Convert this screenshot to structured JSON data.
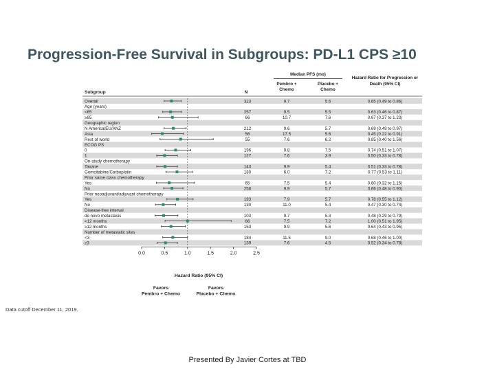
{
  "slide": {
    "title": "Progression-Free Survival in Subgroups: PD-L1 CPS ≥10",
    "data_cutoff": "Data cutoff December 11, 2019.",
    "presenter": "Presented By Javier Cortes at TBD"
  },
  "table": {
    "header_median": "Median PFS (mo)",
    "header_pembro": "Pembro + Chemo",
    "header_placebo": "Placebo + Chemo",
    "header_hr": "Hazard Ratio for Progression or Death (95% CI)",
    "header_subgroup": "Subgroup",
    "header_n": "N"
  },
  "chart_data": {
    "type": "forest",
    "xlabel": "Hazard Ratio (95% CI)",
    "xticks": [
      "0.0",
      "0.5",
      "1.0",
      "1.5",
      "2.0",
      "2.5"
    ],
    "xlim": [
      0,
      2.5
    ],
    "reference_line": 1.0,
    "favors_left": "Favors Pembro + Chemo",
    "favors_right": "Favors Placebo + Chemo",
    "marker_color": "#2e8b7a",
    "band_color": "#d9d9d9",
    "rows": [
      {
        "label": "Overall",
        "n": "323",
        "pembro": "9.7",
        "placebo": "5.6",
        "hr_text": "0.65 (0.49 to 0.86)",
        "hr": 0.65,
        "lo": 0.49,
        "hi": 0.86,
        "header": false
      },
      {
        "label": "Age (years)",
        "header": true
      },
      {
        "label": "<65",
        "n": "257",
        "pembro": "9.5",
        "placebo": "5.5",
        "hr_text": "0.63 (0.46 to 0.87)",
        "hr": 0.63,
        "lo": 0.46,
        "hi": 0.87,
        "header": false
      },
      {
        "label": "≥65",
        "n": "66",
        "pembro": "10.7",
        "placebo": "7.6",
        "hr_text": "0.67 (0.37 to 1.23)",
        "hr": 0.67,
        "lo": 0.37,
        "hi": 1.23,
        "header": false
      },
      {
        "label": "Geographic region",
        "header": true
      },
      {
        "label": "N America/EU/ANZ",
        "n": "212",
        "pembro": "9.6",
        "placebo": "5.7",
        "hr_text": "0.69 (0.49 to 0.97)",
        "hr": 0.69,
        "lo": 0.49,
        "hi": 0.97,
        "header": false
      },
      {
        "label": "Asia",
        "n": "56",
        "pembro": "17.5",
        "placebo": "5.6",
        "hr_text": "0.45 (0.22 to 0.91)",
        "hr": 0.45,
        "lo": 0.22,
        "hi": 0.91,
        "header": false
      },
      {
        "label": "Rest of world",
        "n": "55",
        "pembro": "7.6",
        "placebo": "6.2",
        "hr_text": "0.85 (0.40 to 1.56)",
        "hr": 0.85,
        "lo": 0.4,
        "hi": 1.56,
        "header": false
      },
      {
        "label": "ECOG PS",
        "header": true
      },
      {
        "label": "0",
        "n": "196",
        "pembro": "9.8",
        "placebo": "7.5",
        "hr_text": "0.74 (0.51 to 1.07)",
        "hr": 0.74,
        "lo": 0.51,
        "hi": 1.07,
        "header": false
      },
      {
        "label": "1",
        "n": "127",
        "pembro": "7.6",
        "placebo": "3.9",
        "hr_text": "0.50 (0.33 to 0.78)",
        "hr": 0.5,
        "lo": 0.33,
        "hi": 0.78,
        "header": false
      },
      {
        "label": "On-study chemotherapy",
        "header": true
      },
      {
        "label": "Taxane",
        "n": "143",
        "pembro": "9.9",
        "placebo": "5.4",
        "hr_text": "0.51 (0.33 to 0.78)",
        "hr": 0.51,
        "lo": 0.33,
        "hi": 0.78,
        "header": false
      },
      {
        "label": "Gemcitabine/Carboplatin",
        "n": "180",
        "pembro": "6.0",
        "placebo": "7.2",
        "hr_text": "0.77 (0.53 to 1.11)",
        "hr": 0.77,
        "lo": 0.53,
        "hi": 1.11,
        "header": false
      },
      {
        "label": "Prior same class chemotherapy",
        "header": true
      },
      {
        "label": "Yes",
        "n": "65",
        "pembro": "7.5",
        "placebo": "5.4",
        "hr_text": "0.60 (0.32 to 1.15)",
        "hr": 0.6,
        "lo": 0.32,
        "hi": 1.15,
        "header": false
      },
      {
        "label": "No",
        "n": "258",
        "pembro": "9.9",
        "placebo": "5.7",
        "hr_text": "0.66 (0.48 to 0.90)",
        "hr": 0.66,
        "lo": 0.48,
        "hi": 0.9,
        "header": false
      },
      {
        "label": "Prior neoadjuvant/adjuvant chemotherapy",
        "header": true
      },
      {
        "label": "Yes",
        "n": "193",
        "pembro": "7.9",
        "placebo": "5.7",
        "hr_text": "0.78 (0.55 to 1.12)",
        "hr": 0.78,
        "lo": 0.55,
        "hi": 1.12,
        "header": false
      },
      {
        "label": "No",
        "n": "130",
        "pembro": "11.0",
        "placebo": "5.4",
        "hr_text": "0.47 (0.30 to 0.74)",
        "hr": 0.47,
        "lo": 0.3,
        "hi": 0.74,
        "header": false
      },
      {
        "label": "Disease-free interval",
        "header": true
      },
      {
        "label": "de novo metastasis",
        "n": "103",
        "pembro": "9.7",
        "placebo": "5.3",
        "hr_text": "0.48 (0.29 to 0.79)",
        "hr": 0.48,
        "lo": 0.29,
        "hi": 0.79,
        "header": false
      },
      {
        "label": "<12 months",
        "n": "66",
        "pembro": "7.5",
        "placebo": "7.2",
        "hr_text": "1.00 (0.51 to 1.95)",
        "hr": 1.0,
        "lo": 0.51,
        "hi": 1.95,
        "header": false
      },
      {
        "label": "≥12 months",
        "n": "153",
        "pembro": "9.9",
        "placebo": "5.6",
        "hr_text": "0.64 (0.43 to 0.95)",
        "hr": 0.64,
        "lo": 0.43,
        "hi": 0.95,
        "header": false
      },
      {
        "label": "Number of metastatic sites",
        "header": true
      },
      {
        "label": "<3",
        "n": "184",
        "pembro": "11.5",
        "placebo": "9.0",
        "hr_text": "0.68 (0.46 to 1.00)",
        "hr": 0.68,
        "lo": 0.46,
        "hi": 1.0,
        "header": false
      },
      {
        "label": "≥3",
        "n": "139",
        "pembro": "7.6",
        "placebo": "4.5",
        "hr_text": "0.52 (0.34 to 0.78)",
        "hr": 0.52,
        "lo": 0.34,
        "hi": 0.78,
        "header": false
      }
    ]
  }
}
